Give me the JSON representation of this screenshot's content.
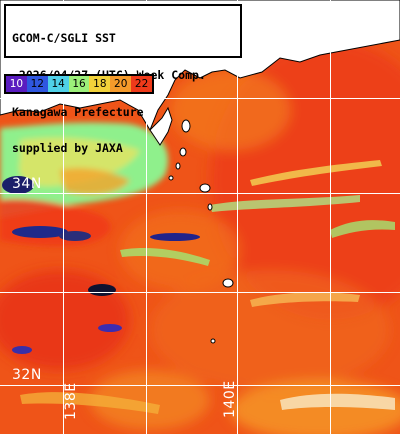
{
  "title": {
    "line1": "GCOM-C/SGLI SST",
    "line2": "~2026/04/27 (UTC) Week Comp.",
    "line3": "Kanagawa Prefecture",
    "line4": "supplied by JAXA"
  },
  "colorbar": {
    "ticks": [
      "10",
      "12",
      "14",
      "16",
      "18",
      "20",
      "22"
    ],
    "colors": [
      "#5a1cc0",
      "#2f57e0",
      "#4fd1e8",
      "#9cf07a",
      "#f2d23a",
      "#f59a2a",
      "#ef3a1a"
    ]
  },
  "labels": {
    "lat_34": "34N",
    "lat_32": "32N",
    "lon_138": "138E",
    "lon_140": "140E"
  },
  "colors": {
    "land": "#ffffff",
    "grid": "#ffffff",
    "warm_water": "#ef5418",
    "cool_water": "#8ff08c"
  }
}
